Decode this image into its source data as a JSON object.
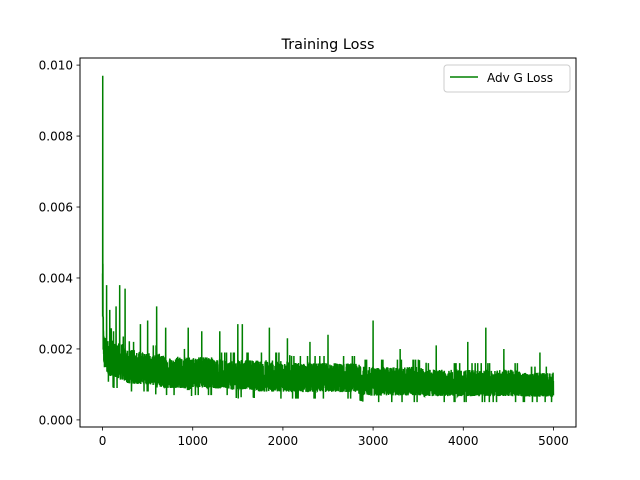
{
  "chart_data": {
    "type": "line",
    "title": "Training Loss",
    "xlabel": "",
    "ylabel": "",
    "xlim": [
      -250,
      5250
    ],
    "ylim": [
      -0.0002,
      0.0102
    ],
    "xticks": [
      0,
      1000,
      2000,
      3000,
      4000,
      5000
    ],
    "xtick_labels": [
      "0",
      "1000",
      "2000",
      "3000",
      "4000",
      "5000"
    ],
    "yticks": [
      0.0,
      0.002,
      0.004,
      0.006,
      0.008,
      0.01
    ],
    "ytick_labels": [
      "0.000",
      "0.002",
      "0.004",
      "0.006",
      "0.008",
      "0.010"
    ],
    "grid": false,
    "legend_position": "upper right",
    "series": [
      {
        "name": "Adv G Loss",
        "color": "#008000",
        "x": [
          0,
          5,
          10,
          15,
          20,
          30,
          40,
          50,
          60,
          80,
          100,
          120,
          140,
          160,
          180,
          200,
          220,
          240,
          260,
          280,
          300,
          350,
          400,
          450,
          500,
          550,
          600,
          650,
          700,
          750,
          800,
          850,
          900,
          950,
          1000,
          1100,
          1200,
          1300,
          1400,
          1500,
          1600,
          1700,
          1800,
          1900,
          2000,
          2100,
          2200,
          2300,
          2400,
          2500,
          2600,
          2700,
          2800,
          2900,
          3000,
          3100,
          3200,
          3300,
          3400,
          3500,
          3600,
          3700,
          3800,
          3900,
          4000,
          4100,
          4200,
          4300,
          4400,
          4500,
          4600,
          4700,
          4800,
          4900,
          5000
        ],
        "band_low": [
          0.0018,
          0.0016,
          0.0014,
          0.0013,
          0.0012,
          0.0012,
          0.0012,
          0.0011,
          0.0011,
          0.001,
          0.001,
          0.0009,
          0.0009,
          0.0009,
          0.0009,
          0.0009,
          0.0009,
          0.0009,
          0.0008,
          0.0008,
          0.0008,
          0.0008,
          0.0008,
          0.0008,
          0.0008,
          0.0008,
          0.0007,
          0.0007,
          0.0007,
          0.0007,
          0.0007,
          0.0007,
          0.0007,
          0.0006,
          0.0007,
          0.0007,
          0.0007,
          0.0007,
          0.0007,
          0.0006,
          0.0007,
          0.0006,
          0.0006,
          0.0006,
          0.0006,
          0.0006,
          0.0006,
          0.0006,
          0.0006,
          0.0006,
          0.0006,
          0.0006,
          0.0006,
          0.0005,
          0.0005,
          0.0005,
          0.0005,
          0.0005,
          0.0005,
          0.0005,
          0.0005,
          0.0005,
          0.0005,
          0.0005,
          0.0005,
          0.0005,
          0.0005,
          0.0005,
          0.0005,
          0.0005,
          0.0005,
          0.0005,
          0.0005,
          0.0005,
          0.0005
        ],
        "band_high": [
          0.006,
          0.004,
          0.003,
          0.0028,
          0.0027,
          0.0026,
          0.0025,
          0.0025,
          0.0025,
          0.0025,
          0.0026,
          0.0025,
          0.0025,
          0.0025,
          0.0024,
          0.0024,
          0.0024,
          0.0023,
          0.0023,
          0.0023,
          0.0022,
          0.0022,
          0.0022,
          0.0021,
          0.0021,
          0.0021,
          0.0021,
          0.0021,
          0.002,
          0.002,
          0.002,
          0.002,
          0.002,
          0.002,
          0.002,
          0.002,
          0.002,
          0.0019,
          0.0019,
          0.0019,
          0.0019,
          0.0019,
          0.0019,
          0.0019,
          0.0019,
          0.0018,
          0.0018,
          0.0018,
          0.0018,
          0.0018,
          0.0018,
          0.0018,
          0.0018,
          0.0017,
          0.0017,
          0.0017,
          0.0017,
          0.0017,
          0.0017,
          0.0017,
          0.0016,
          0.0016,
          0.0016,
          0.0016,
          0.0016,
          0.0016,
          0.0016,
          0.0016,
          0.0016,
          0.0016,
          0.0016,
          0.0015,
          0.0015,
          0.0015,
          0.0015
        ],
        "spikes": [
          {
            "x": 2,
            "y": 0.0097
          },
          {
            "x": 45,
            "y": 0.0038
          },
          {
            "x": 80,
            "y": 0.0031
          },
          {
            "x": 150,
            "y": 0.0032
          },
          {
            "x": 190,
            "y": 0.0038
          },
          {
            "x": 250,
            "y": 0.0037
          },
          {
            "x": 420,
            "y": 0.0027
          },
          {
            "x": 500,
            "y": 0.0028
          },
          {
            "x": 600,
            "y": 0.0032
          },
          {
            "x": 700,
            "y": 0.0026
          },
          {
            "x": 950,
            "y": 0.0026
          },
          {
            "x": 1100,
            "y": 0.0025
          },
          {
            "x": 1300,
            "y": 0.0025
          },
          {
            "x": 1500,
            "y": 0.0027
          },
          {
            "x": 1550,
            "y": 0.0027
          },
          {
            "x": 1850,
            "y": 0.0026
          },
          {
            "x": 2050,
            "y": 0.0023
          },
          {
            "x": 2300,
            "y": 0.0022
          },
          {
            "x": 2500,
            "y": 0.0024
          },
          {
            "x": 3000,
            "y": 0.0028
          },
          {
            "x": 3300,
            "y": 0.002
          },
          {
            "x": 3700,
            "y": 0.0021
          },
          {
            "x": 4050,
            "y": 0.0022
          },
          {
            "x": 4250,
            "y": 0.0026
          },
          {
            "x": 4450,
            "y": 0.002
          },
          {
            "x": 4850,
            "y": 0.0019
          }
        ]
      }
    ]
  }
}
